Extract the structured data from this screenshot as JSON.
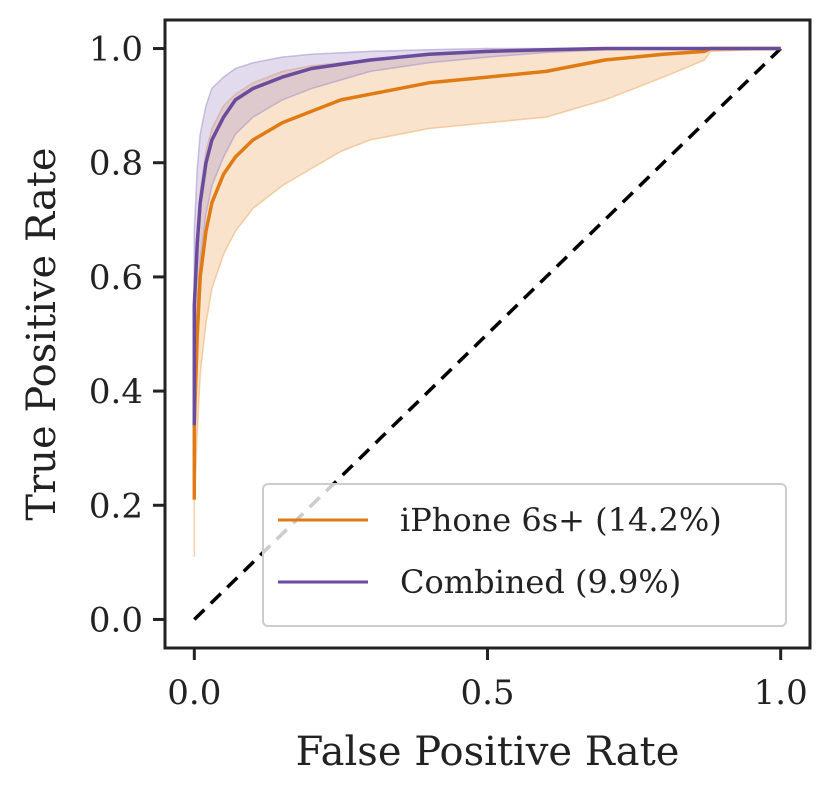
{
  "chart_data": {
    "type": "line",
    "title": "",
    "xlabel": "False Positive Rate",
    "ylabel": "True Positive Rate",
    "xlim": [
      -0.05,
      1.05
    ],
    "ylim": [
      -0.05,
      1.05
    ],
    "xticks": [
      0.0,
      0.5,
      1.0
    ],
    "xtick_labels": [
      "0.0",
      "0.5",
      "1.0"
    ],
    "yticks": [
      0.0,
      0.2,
      0.4,
      0.6,
      0.8,
      1.0
    ],
    "ytick_labels": [
      "0.0",
      "0.2",
      "0.4",
      "0.6",
      "0.8",
      "1.0"
    ],
    "grid": false,
    "legend_position": "bottom-right",
    "series": [
      {
        "name": "iPhone 6s+ (14.2%)",
        "color": "#e07b14",
        "band_color": "#f0b070",
        "x": [
          0.0,
          0.0,
          0.005,
          0.01,
          0.02,
          0.03,
          0.05,
          0.07,
          0.1,
          0.15,
          0.2,
          0.25,
          0.3,
          0.4,
          0.5,
          0.6,
          0.7,
          0.8,
          0.87,
          0.88,
          1.0
        ],
        "y": [
          0.21,
          0.34,
          0.5,
          0.6,
          0.68,
          0.73,
          0.78,
          0.81,
          0.84,
          0.87,
          0.89,
          0.91,
          0.92,
          0.94,
          0.95,
          0.96,
          0.98,
          0.99,
          0.995,
          1.0,
          1.0
        ],
        "lower": [
          0.11,
          0.2,
          0.33,
          0.43,
          0.52,
          0.58,
          0.64,
          0.68,
          0.72,
          0.76,
          0.79,
          0.82,
          0.84,
          0.86,
          0.87,
          0.88,
          0.91,
          0.95,
          0.98,
          0.995,
          1.0
        ],
        "upper": [
          0.32,
          0.5,
          0.66,
          0.75,
          0.82,
          0.86,
          0.9,
          0.92,
          0.94,
          0.96,
          0.97,
          0.975,
          0.98,
          0.99,
          0.993,
          0.995,
          0.998,
          0.999,
          1.0,
          1.0,
          1.0
        ]
      },
      {
        "name": "Combined (9.9%)",
        "color": "#6a4c9c",
        "band_color": "#a898cc",
        "x": [
          0.0,
          0.0,
          0.005,
          0.01,
          0.02,
          0.03,
          0.05,
          0.07,
          0.1,
          0.15,
          0.2,
          0.3,
          0.4,
          0.5,
          0.6,
          0.7,
          0.8,
          1.0
        ],
        "y": [
          0.34,
          0.55,
          0.66,
          0.73,
          0.8,
          0.84,
          0.88,
          0.91,
          0.93,
          0.95,
          0.965,
          0.98,
          0.99,
          0.995,
          0.998,
          1.0,
          1.0,
          1.0
        ],
        "lower": [
          0.3,
          0.45,
          0.55,
          0.63,
          0.71,
          0.76,
          0.81,
          0.85,
          0.88,
          0.91,
          0.93,
          0.96,
          0.975,
          0.985,
          0.993,
          0.998,
          1.0,
          1.0
        ],
        "upper": [
          0.45,
          0.68,
          0.79,
          0.85,
          0.9,
          0.93,
          0.95,
          0.965,
          0.975,
          0.985,
          0.99,
          0.995,
          0.998,
          1.0,
          1.0,
          1.0,
          1.0,
          1.0
        ]
      }
    ],
    "reference_line": {
      "x": [
        0.0,
        1.0
      ],
      "y": [
        0.0,
        1.0
      ],
      "color": "#000000",
      "style": "dashed"
    }
  }
}
